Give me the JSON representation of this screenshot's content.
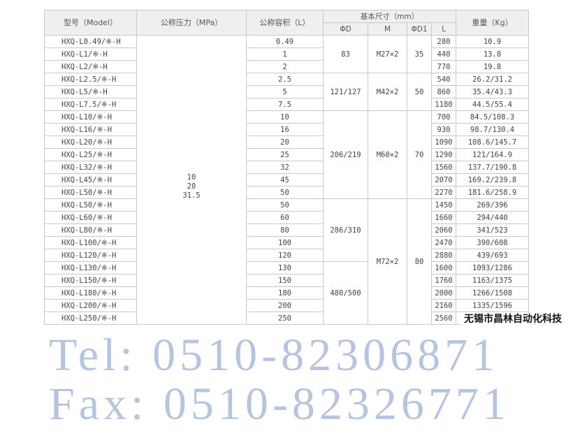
{
  "headers": {
    "model": "型号（Model）",
    "pressure": "公称压力（MPa）",
    "volume": "公称容积（L）",
    "dims": "基本尺寸（mm）",
    "weight": "重量（Kg）",
    "d": "ΦD",
    "m": "M",
    "d1": "ΦD1",
    "l": "L"
  },
  "pressure_values": [
    "10",
    "20",
    "31.5"
  ],
  "rows": [
    {
      "model": "HXQ-L0.49/※-H",
      "volume": "0.49",
      "l": "280",
      "weight": "10.9"
    },
    {
      "model": "HXQ-L1/※-H",
      "volume": "1",
      "l": "440",
      "weight": "13.8"
    },
    {
      "model": "HXQ-L2/※-H",
      "volume": "2",
      "l": "770",
      "weight": "19.8"
    },
    {
      "model": "HXQ-L2.5/※-H",
      "volume": "2.5",
      "l": "540",
      "weight": "26.2/31.2"
    },
    {
      "model": "HXQ-L5/※-H",
      "volume": "5",
      "l": "860",
      "weight": "35.4/43.3"
    },
    {
      "model": "HXQ-L7.5/※-H",
      "volume": "7.5",
      "l": "1180",
      "weight": "44.5/55.4"
    },
    {
      "model": "HXQ-L10/※-H",
      "volume": "10",
      "l": "700",
      "weight": "84.5/108.3"
    },
    {
      "model": "HXQ-L16/※-H",
      "volume": "16",
      "l": "930",
      "weight": "98.7/130.4"
    },
    {
      "model": "HXQ-L20/※-H",
      "volume": "20",
      "l": "1090",
      "weight": "108.6/145.7"
    },
    {
      "model": "HXQ-L25/※-H",
      "volume": "25",
      "l": "1290",
      "weight": "121/164.9"
    },
    {
      "model": "HXQ-L32/※-H",
      "volume": "32",
      "l": "1560",
      "weight": "137.7/190.8"
    },
    {
      "model": "HXQ-L45/※-H",
      "volume": "45",
      "l": "2070",
      "weight": "169.2/239.8"
    },
    {
      "model": "HXQ-L50/※-H",
      "volume": "50",
      "l": "2270",
      "weight": "181.6/258.9"
    },
    {
      "model": "HXQ-L50/※-H",
      "volume": "50",
      "l": "1450",
      "weight": "269/396"
    },
    {
      "model": "HXQ-L60/※-H",
      "volume": "60",
      "l": "1660",
      "weight": "294/440"
    },
    {
      "model": "HXQ-L80/※-H",
      "volume": "80",
      "l": "2060",
      "weight": "341/523"
    },
    {
      "model": "HXQ-L100/※-H",
      "volume": "100",
      "l": "2470",
      "weight": "390/608"
    },
    {
      "model": "HXQ-L120/※-H",
      "volume": "120",
      "l": "2880",
      "weight": "439/693"
    },
    {
      "model": "HXQ-L130/※-H",
      "volume": "130",
      "l": "1600",
      "weight": "1093/1286"
    },
    {
      "model": "HXQ-L150/※-H",
      "volume": "150",
      "l": "1760",
      "weight": "1163/1375"
    },
    {
      "model": "HXQ-L180/※-H",
      "volume": "180",
      "l": "2000",
      "weight": "1266/1508"
    },
    {
      "model": "HXQ-L200/※-H",
      "volume": "200",
      "l": "2160",
      "weight": "1335/1596"
    },
    {
      "model": "HXQ-L250/※-H",
      "volume": "250",
      "l": "2560",
      "weight": ""
    }
  ],
  "d_groups": [
    {
      "value": "83",
      "span": 3
    },
    {
      "value": "121/127",
      "span": 3
    },
    {
      "value": "206/219",
      "span": 7
    },
    {
      "value": "286/310",
      "span": 5
    },
    {
      "value": "480/500",
      "span": 5
    }
  ],
  "m_groups": [
    {
      "value": "M27×2",
      "span": 3
    },
    {
      "value": "M42×2",
      "span": 3
    },
    {
      "value": "M60×2",
      "span": 7
    },
    {
      "value": "M72×2",
      "span": 10
    }
  ],
  "d1_groups": [
    {
      "value": "35",
      "span": 3
    },
    {
      "value": "50",
      "span": 3
    },
    {
      "value": "70",
      "span": 7
    },
    {
      "value": "80",
      "span": 10
    }
  ],
  "watermark": {
    "tel": "Tel: 0510-82306871",
    "fax": "Fax: 0510-82326771"
  },
  "company": "无锡市昌林自动化科技"
}
